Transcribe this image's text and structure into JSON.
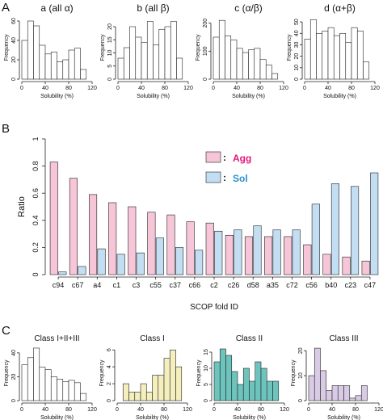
{
  "panel_letters": {
    "A": "A",
    "B": "B",
    "C": "C"
  },
  "colors": {
    "agg_fill": "#f6c6d8",
    "sol_fill": "#c3def2",
    "agg_text": "#e0187a",
    "sol_text": "#2a8fcf",
    "class1_fill": "#f5eebd",
    "class2_fill": "#6cc4bd",
    "class3_fill": "#d9cbe5",
    "white_fill": "#ffffff"
  },
  "chart_data": [
    {
      "type": "bar",
      "panel": "A",
      "title": "a  (all α)",
      "xlabel": "Solubility  (%)",
      "ylabel": "Frequency",
      "bin_edges": [
        0,
        10,
        20,
        30,
        40,
        50,
        60,
        70,
        80,
        90,
        100,
        110
      ],
      "values": [
        40,
        60,
        55,
        35,
        26,
        28,
        18,
        20,
        30,
        32,
        10
      ],
      "xlim": [
        0,
        120
      ],
      "ylim": [
        0,
        65
      ],
      "xticks": [
        0,
        40,
        80,
        120
      ],
      "yticks": [
        0,
        20,
        40,
        60
      ],
      "fill": "white"
    },
    {
      "type": "bar",
      "panel": "A",
      "title": "b  (all β)",
      "xlabel": "Solubility  (%)",
      "ylabel": "Frequency",
      "bin_edges": [
        0,
        10,
        20,
        30,
        40,
        50,
        60,
        70,
        80,
        90,
        100,
        110
      ],
      "values": [
        8,
        12,
        20,
        16,
        14,
        22,
        13,
        19,
        20,
        22,
        8
      ],
      "xlim": [
        0,
        120
      ],
      "ylim": [
        0,
        24
      ],
      "xticks": [
        0,
        40,
        80,
        120
      ],
      "yticks": [
        0,
        5,
        10,
        15,
        20
      ],
      "fill": "white"
    },
    {
      "type": "bar",
      "panel": "A",
      "title": "c  (α/β)",
      "xlabel": "Solubility  (%)",
      "ylabel": "Frequency",
      "bin_edges": [
        0,
        10,
        20,
        30,
        40,
        50,
        60,
        70,
        80,
        90,
        100,
        110
      ],
      "values": [
        150,
        210,
        155,
        140,
        110,
        95,
        105,
        110,
        70,
        50,
        20
      ],
      "xlim": [
        0,
        120
      ],
      "ylim": [
        0,
        225
      ],
      "xticks": [
        0,
        40,
        80,
        120
      ],
      "yticks": [
        0,
        100,
        200
      ],
      "fill": "white"
    },
    {
      "type": "bar",
      "panel": "A",
      "title": "d  (α+β)",
      "xlabel": "Solubility  (%)",
      "ylabel": "Frequency",
      "bin_edges": [
        0,
        10,
        20,
        30,
        40,
        50,
        60,
        70,
        80,
        90,
        100,
        110
      ],
      "values": [
        35,
        52,
        40,
        42,
        45,
        38,
        40,
        32,
        45,
        42,
        15
      ],
      "xlim": [
        0,
        120
      ],
      "ylim": [
        0,
        55
      ],
      "xticks": [
        0,
        40,
        80,
        120
      ],
      "yticks": [
        0,
        10,
        20,
        30,
        40,
        50
      ],
      "fill": "white"
    },
    {
      "type": "bar",
      "panel": "B",
      "xlabel": "SCOP fold ID",
      "ylabel": "Ratio",
      "categories": [
        "c94",
        "c67",
        "a4",
        "c1",
        "c3",
        "c55",
        "c37",
        "c66",
        "c2",
        "c26",
        "d58",
        "a35",
        "c72",
        "c56",
        "b40",
        "c23",
        "c47"
      ],
      "series": [
        {
          "name": "Agg",
          "values": [
            0.83,
            0.71,
            0.59,
            0.53,
            0.5,
            0.46,
            0.44,
            0.39,
            0.38,
            0.29,
            0.28,
            0.28,
            0.28,
            0.22,
            0.15,
            0.13,
            0.1
          ]
        },
        {
          "name": "Sol",
          "values": [
            0.02,
            0.06,
            0.19,
            0.15,
            0.16,
            0.27,
            0.2,
            0.18,
            0.32,
            0.33,
            0.36,
            0.33,
            0.33,
            0.52,
            0.67,
            0.65,
            0.75
          ]
        }
      ],
      "ylim": [
        0,
        1.0
      ],
      "yticks": [
        0.0,
        0.2,
        0.4,
        0.6,
        0.8,
        1.0
      ],
      "legend_position": "top-center"
    },
    {
      "type": "bar",
      "panel": "C",
      "title": "Class I+II+III",
      "xlabel": "Solubility  (%)",
      "ylabel": "Frequency",
      "bin_edges": [
        0,
        10,
        20,
        30,
        40,
        50,
        60,
        70,
        80,
        90,
        100,
        110
      ],
      "values": [
        30,
        36,
        44,
        28,
        26,
        20,
        18,
        16,
        17,
        15,
        6
      ],
      "xlim": [
        0,
        120
      ],
      "ylim": [
        0,
        46
      ],
      "xticks": [
        0,
        40,
        80,
        120
      ],
      "yticks": [
        0,
        20,
        40
      ],
      "fill": "white"
    },
    {
      "type": "bar",
      "panel": "C",
      "title": "Class I",
      "xlabel": "Solubility  (%)",
      "ylabel": "Frequency",
      "bin_edges": [
        0,
        10,
        20,
        30,
        40,
        50,
        60,
        70,
        80,
        90,
        100,
        110
      ],
      "values": [
        0,
        2,
        1,
        1,
        2,
        1,
        3,
        3,
        5,
        6,
        4
      ],
      "xlim": [
        0,
        120
      ],
      "ylim": [
        0,
        6.5
      ],
      "xticks": [
        0,
        40,
        80,
        120
      ],
      "yticks": [
        0,
        2,
        4,
        6
      ],
      "fill": "class1"
    },
    {
      "type": "bar",
      "panel": "C",
      "title": "Class II",
      "xlabel": "Solubility  (%)",
      "ylabel": "Frequency",
      "bin_edges": [
        0,
        10,
        20,
        30,
        40,
        50,
        60,
        70,
        80,
        90,
        100,
        110
      ],
      "values": [
        12,
        16,
        14,
        9,
        5,
        10,
        6,
        12,
        10,
        6,
        6
      ],
      "xlim": [
        0,
        120
      ],
      "ylim": [
        0,
        17
      ],
      "xticks": [
        0,
        40,
        80,
        120
      ],
      "yticks": [
        0,
        5,
        10,
        15
      ],
      "fill": "class2"
    },
    {
      "type": "bar",
      "panel": "C",
      "title": "Class III",
      "xlabel": "Solubility  (%)",
      "ylabel": "Frequency",
      "bin_edges": [
        0,
        10,
        20,
        30,
        40,
        50,
        60,
        70,
        80,
        90,
        100,
        110
      ],
      "values": [
        10,
        21,
        12,
        4,
        6,
        6,
        6,
        1,
        2,
        6,
        0
      ],
      "xlim": [
        0,
        120
      ],
      "ylim": [
        0,
        22
      ],
      "xticks": [
        0,
        40,
        80,
        120
      ],
      "yticks": [
        0,
        10,
        20
      ],
      "fill": "class3"
    }
  ]
}
